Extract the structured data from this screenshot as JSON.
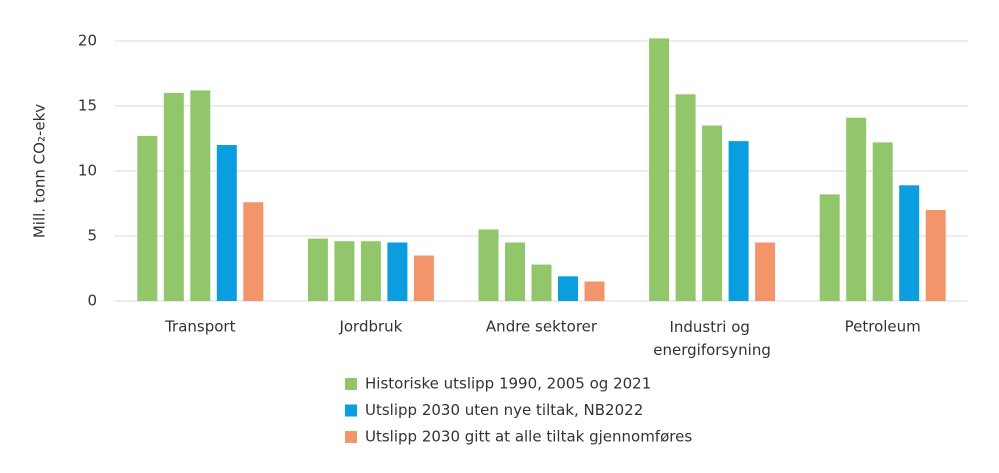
{
  "chart_data": {
    "type": "bar",
    "y_label": "Mill. tonn CO₂-ekv",
    "categories": [
      "Transport",
      "Jordbruk",
      "Andre sektorer",
      "Industri og energiforsyning",
      "Petroleum"
    ],
    "series": [
      {
        "name": "Historiske utslipp 1990, 2005 og 2021",
        "color": "#92c66b",
        "values": [
          [
            12.7,
            16.0,
            16.2
          ],
          [
            4.8,
            4.6,
            4.6
          ],
          [
            5.5,
            4.5,
            2.8
          ],
          [
            20.2,
            15.9,
            13.5
          ],
          [
            8.2,
            14.1,
            12.2
          ]
        ]
      },
      {
        "name": "Utslipp 2030 uten nye tiltak, NB2022",
        "color": "#0a9ee0",
        "values": [
          12.0,
          4.5,
          1.9,
          12.3,
          8.9
        ]
      },
      {
        "name": "Utslipp 2030 gitt at alle tiltak gjennomføres",
        "color": "#f3956b",
        "values": [
          7.6,
          3.5,
          1.5,
          4.5,
          7.0
        ]
      }
    ],
    "ylim": [
      0,
      20
    ],
    "yticks": [
      0,
      5,
      10,
      15,
      20
    ],
    "grid": true
  }
}
